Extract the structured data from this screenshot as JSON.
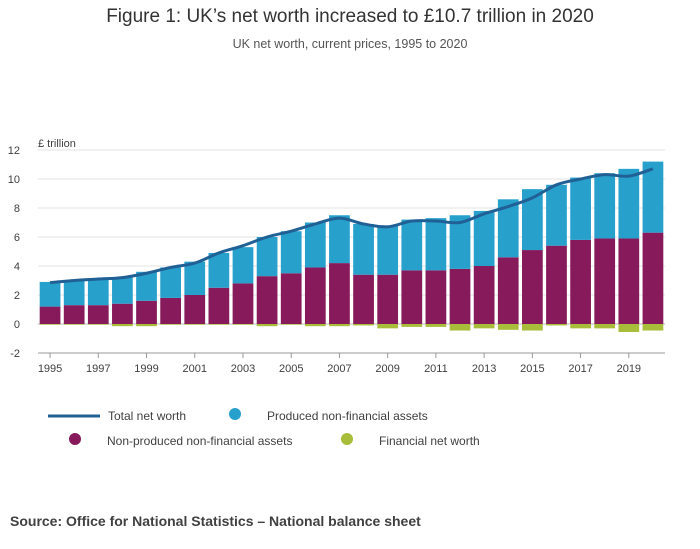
{
  "header": {
    "title": "Figure 1: UK’s net worth increased to £10.7 trillion in 2020",
    "subtitle": "UK net worth, current prices, 1995 to 2020"
  },
  "footer": {
    "source": "Source: Office for National Statistics – National balance sheet"
  },
  "chart_data": {
    "type": "bar",
    "stacked": true,
    "title": "Figure 1: UK’s net worth increased to £10.7 trillion in 2020",
    "subtitle": "UK net worth, current prices, 1995 to 2020",
    "ylabel": "£ trillion",
    "xlabel": "",
    "ylim": [
      -2,
      12
    ],
    "yticks": [
      -2,
      0,
      2,
      4,
      6,
      8,
      10,
      12
    ],
    "xtick_labels": [
      "1995",
      "1997",
      "1999",
      "2001",
      "2003",
      "2005",
      "2007",
      "2009",
      "2011",
      "2013",
      "2015",
      "2017",
      "2019"
    ],
    "grid": true,
    "legend_position": "bottom",
    "categories": [
      "1995",
      "1996",
      "1997",
      "1998",
      "1999",
      "2000",
      "2001",
      "2002",
      "2003",
      "2004",
      "2005",
      "2006",
      "2007",
      "2008",
      "2009",
      "2010",
      "2011",
      "2012",
      "2013",
      "2014",
      "2015",
      "2016",
      "2017",
      "2018",
      "2019",
      "2020"
    ],
    "series": [
      {
        "name": "Non-produced non-financial assets",
        "kind": "bar",
        "color": "#871a5b",
        "values": [
          1.2,
          1.3,
          1.3,
          1.4,
          1.6,
          1.8,
          2.0,
          2.5,
          2.8,
          3.3,
          3.5,
          3.9,
          4.2,
          3.4,
          3.4,
          3.7,
          3.7,
          3.8,
          4.0,
          4.6,
          5.1,
          5.4,
          5.8,
          5.9,
          5.9,
          6.3
        ]
      },
      {
        "name": "Produced non-financial assets",
        "kind": "bar",
        "color": "#27a0cc",
        "values": [
          1.7,
          1.7,
          1.8,
          1.8,
          2.0,
          2.1,
          2.3,
          2.4,
          2.5,
          2.7,
          2.9,
          3.1,
          3.3,
          3.5,
          3.4,
          3.5,
          3.6,
          3.7,
          3.8,
          4.0,
          4.2,
          4.2,
          4.3,
          4.5,
          4.8,
          4.9
        ]
      },
      {
        "name": "Financial net worth",
        "kind": "bar",
        "color": "#a8bd3a",
        "values": [
          -0.05,
          -0.05,
          -0.05,
          -0.15,
          -0.15,
          -0.05,
          -0.05,
          -0.05,
          -0.05,
          -0.15,
          -0.05,
          -0.15,
          -0.15,
          -0.1,
          -0.3,
          -0.2,
          -0.2,
          -0.45,
          -0.3,
          -0.4,
          -0.45,
          -0.1,
          -0.3,
          -0.3,
          -0.55,
          -0.45
        ]
      },
      {
        "name": "Total net worth",
        "kind": "line",
        "color": "#206095",
        "values": [
          2.85,
          3.0,
          3.1,
          3.2,
          3.5,
          3.9,
          4.2,
          4.9,
          5.4,
          6.0,
          6.4,
          6.9,
          7.3,
          6.9,
          6.7,
          7.1,
          7.1,
          7.0,
          7.6,
          8.1,
          8.7,
          9.6,
          10.0,
          10.3,
          10.2,
          10.7
        ]
      }
    ]
  }
}
